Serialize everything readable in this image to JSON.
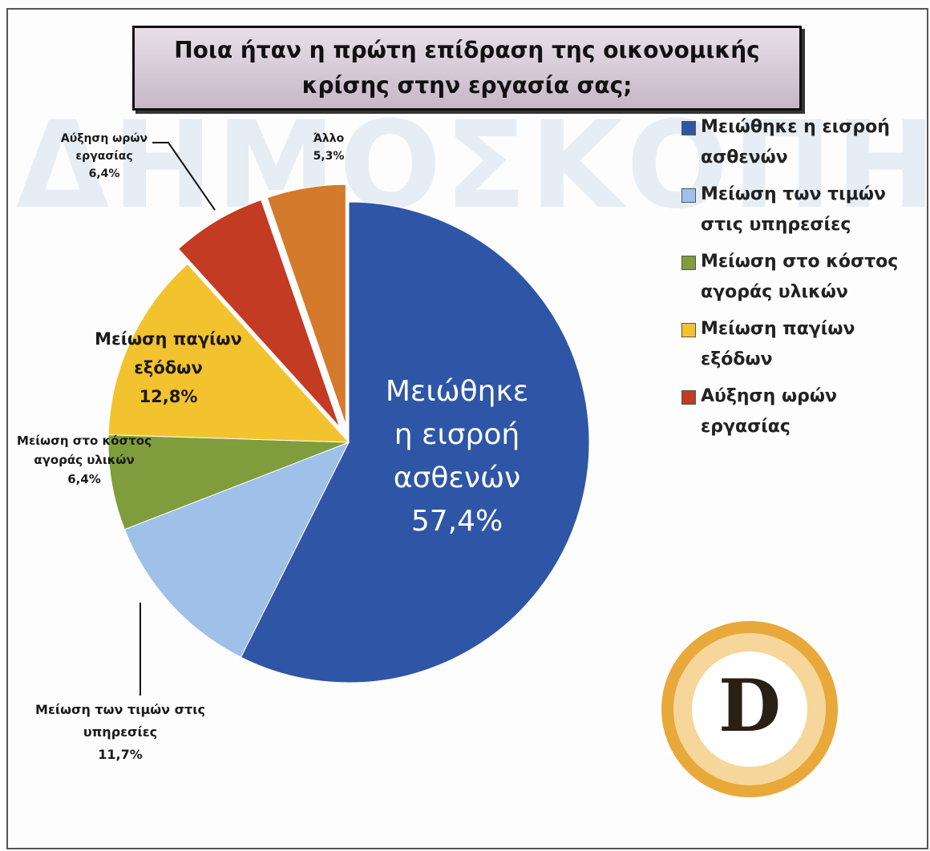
{
  "chart_data": {
    "type": "pie",
    "title": "Ποια ήταν η πρώτη επίδραση της οικονομικής κρίσης στην εργασία σας;",
    "watermark": "ΔΗΜΟΣΚΟΠΗΣΗ",
    "logo_text": "D",
    "categories": [
      "Μειώθηκε η εισροή ασθενών",
      "Μείωση των τιμών στις υπηρεσίες",
      "Μείωση στο κόστος αγοράς υλικών",
      "Μείωση παγίων εξόδων",
      "Αύξηση ωρών εργασίας",
      "Άλλο"
    ],
    "values": [
      57.4,
      11.7,
      6.4,
      12.8,
      6.4,
      5.3
    ],
    "value_labels": [
      "57,4%",
      "11,7%",
      "6,4%",
      "12,8%",
      "6,4%",
      "5,3%"
    ],
    "colors": [
      "#2f56a6",
      "#9fc0e8",
      "#7f9d3c",
      "#f3c22f",
      "#c23b22",
      "#d47a2c"
    ],
    "exploded": [
      false,
      false,
      false,
      false,
      true,
      true
    ],
    "legend_count": 5
  }
}
